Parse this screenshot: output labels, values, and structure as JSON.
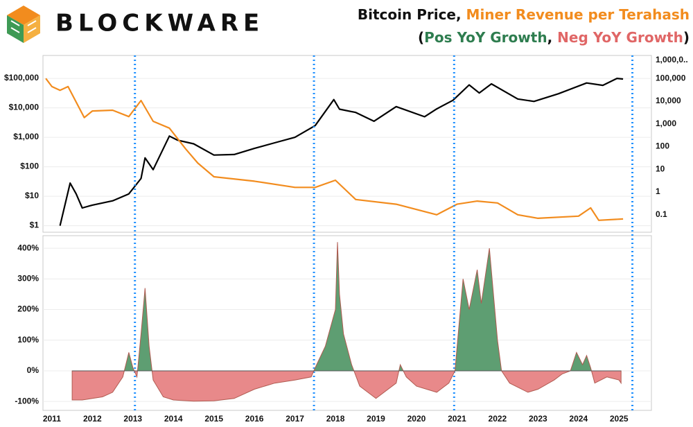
{
  "brand": "BLOCKWARE",
  "title_lines": [
    [
      {
        "text": "Bitcoin Price, ",
        "color": "#111111"
      },
      {
        "text": "Miner Revenue per Terahash",
        "color": "#f28c1e"
      }
    ],
    [
      {
        "text": "(",
        "color": "#111111"
      },
      {
        "text": "Pos YoY Growth",
        "color": "#2e7d4f"
      },
      {
        "text": ", ",
        "color": "#111111"
      },
      {
        "text": "Neg YoY Growth",
        "color": "#e06666"
      },
      {
        "text": ")",
        "color": "#111111"
      }
    ]
  ],
  "chart_data": [
    {
      "type": "line",
      "log_scale": true,
      "grid": true,
      "xlim": [
        2010.78,
        2025.8
      ],
      "ylim": [
        0.6,
        600000
      ],
      "yticks": [
        {
          "value": 1,
          "label": "$1"
        },
        {
          "value": 10,
          "label": "$10"
        },
        {
          "value": 100,
          "label": "$100"
        },
        {
          "value": 1000,
          "label": "$1,000"
        },
        {
          "value": 10000,
          "label": "$10,000"
        },
        {
          "value": 100000,
          "label": "$100,000"
        }
      ],
      "y2lim": [
        0.017,
        1030000
      ],
      "y2ticks": [
        0.1,
        1,
        10,
        100,
        {
          "value": 1000,
          "label": "1,000"
        },
        {
          "value": 10000,
          "label": "10,000"
        },
        {
          "value": 100000,
          "label": "100,000"
        },
        {
          "value": 1000000,
          "label": "1,000,0.."
        }
      ],
      "vlines": [
        2013.05,
        2017.47,
        2020.93,
        2025.33
      ],
      "vline_color": "#1e90ff",
      "series": [
        {
          "color": "#000000",
          "x": [
            2011.2,
            2011.45,
            2011.6,
            2011.75,
            2012.0,
            2012.5,
            2012.9,
            2013.2,
            2013.3,
            2013.5,
            2013.9,
            2014.1,
            2014.5,
            2015.0,
            2015.5,
            2016.0,
            2016.5,
            2017.0,
            2017.5,
            2017.96,
            2018.1,
            2018.5,
            2018.95,
            2019.5,
            2020.2,
            2020.5,
            2020.9,
            2021.3,
            2021.55,
            2021.85,
            2022.5,
            2022.9,
            2023.5,
            2024.2,
            2024.6,
            2024.95,
            2025.1
          ],
          "values": [
            1,
            28,
            12,
            4,
            5,
            7,
            12,
            40,
            200,
            80,
            1100,
            800,
            600,
            250,
            260,
            420,
            650,
            1000,
            2500,
            19000,
            9000,
            7000,
            3500,
            11000,
            5000,
            9200,
            18000,
            60000,
            32000,
            65000,
            20000,
            16500,
            30000,
            70000,
            58000,
            100000,
            95000
          ]
        },
        {
          "color": "#f28c1e",
          "axis": "y2",
          "x": [
            2010.85,
            2011.0,
            2011.2,
            2011.4,
            2011.8,
            2012.0,
            2012.5,
            2012.9,
            2013.2,
            2013.5,
            2013.9,
            2014.3,
            2014.6,
            2015.0,
            2016.0,
            2017.0,
            2017.5,
            2018.0,
            2018.5,
            2019.5,
            2020.5,
            2021.0,
            2021.5,
            2022.0,
            2022.5,
            2023.0,
            2024.0,
            2024.3,
            2024.5,
            2025.1
          ],
          "values": [
            100000,
            44000,
            30000,
            44000,
            1900,
            3700,
            4000,
            2100,
            10700,
            1300,
            650,
            80,
            19,
            4.7,
            3,
            1.6,
            1.6,
            3.3,
            0.47,
            0.29,
            0.1,
            0.29,
            0.4,
            0.33,
            0.1,
            0.07,
            0.087,
            0.2,
            0.057,
            0.065
          ]
        }
      ]
    },
    {
      "type": "area",
      "grid": true,
      "xlim": [
        2010.78,
        2025.8
      ],
      "xticks": [
        2011,
        2012,
        2013,
        2014,
        2015,
        2016,
        2017,
        2018,
        2019,
        2020,
        2021,
        2022,
        2023,
        2024,
        2025
      ],
      "ylim": [
        -129,
        441
      ],
      "yticks": [
        {
          "value": -100,
          "label": "-100%"
        },
        {
          "value": 0,
          "label": "0%"
        },
        {
          "value": 100,
          "label": "100%"
        },
        {
          "value": 200,
          "label": "200%"
        },
        {
          "value": 300,
          "label": "300%"
        },
        {
          "value": 400,
          "label": "400%"
        }
      ],
      "series": [
        {
          "pos_color": "#5e9e72",
          "neg_color": "#e8898a",
          "line_color": "#b05a50",
          "x": [
            2011.5,
            2011.75,
            2012.0,
            2012.25,
            2012.5,
            2012.75,
            2012.9,
            2013.0,
            2013.1,
            2013.2,
            2013.3,
            2013.4,
            2013.5,
            2013.75,
            2014.0,
            2014.5,
            2015.0,
            2015.5,
            2016.0,
            2016.5,
            2017.0,
            2017.4,
            2017.5,
            2017.75,
            2018.0,
            2018.05,
            2018.1,
            2018.2,
            2018.4,
            2018.6,
            2019.0,
            2019.5,
            2019.6,
            2019.75,
            2020.0,
            2020.5,
            2020.8,
            2020.95,
            2021.15,
            2021.3,
            2021.5,
            2021.6,
            2021.8,
            2022.0,
            2022.1,
            2022.3,
            2022.75,
            2023.0,
            2023.4,
            2023.6,
            2023.8,
            2023.95,
            2024.1,
            2024.2,
            2024.3,
            2024.4,
            2024.7,
            2025.0,
            2025.05
          ],
          "values": [
            -95,
            -95,
            -90,
            -85,
            -70,
            -20,
            60,
            10,
            -20,
            120,
            270,
            80,
            -30,
            -85,
            -95,
            -99,
            -98,
            -90,
            -60,
            -40,
            -30,
            -20,
            10,
            80,
            200,
            420,
            250,
            120,
            20,
            -50,
            -90,
            -40,
            20,
            -20,
            -50,
            -70,
            -40,
            0,
            300,
            200,
            330,
            220,
            400,
            100,
            0,
            -40,
            -70,
            -60,
            -30,
            -10,
            0,
            60,
            20,
            50,
            10,
            -40,
            -20,
            -30,
            -40
          ]
        }
      ]
    }
  ]
}
